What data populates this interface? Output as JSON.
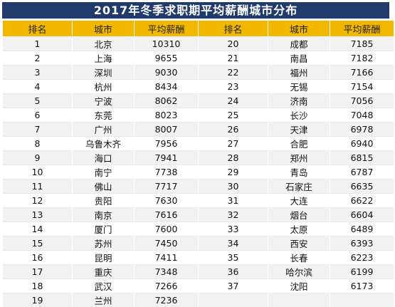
{
  "title": "2017年冬季求职期平均薪酬城市分布",
  "headers": [
    "排名",
    "城市",
    "平均薪酬",
    "排名",
    "城市",
    "平均薪酬"
  ],
  "rows": [
    {
      "left": {
        "rank": "1",
        "city": "北京",
        "salary": "10310"
      },
      "right": {
        "rank": "20",
        "city": "成都",
        "salary": "7185"
      }
    },
    {
      "left": {
        "rank": "2",
        "city": "上海",
        "salary": "9655"
      },
      "right": {
        "rank": "21",
        "city": "南昌",
        "salary": "7182"
      }
    },
    {
      "left": {
        "rank": "3",
        "city": "深圳",
        "salary": "9030"
      },
      "right": {
        "rank": "22",
        "city": "福州",
        "salary": "7166"
      }
    },
    {
      "left": {
        "rank": "4",
        "city": "杭州",
        "salary": "8434"
      },
      "right": {
        "rank": "23",
        "city": "无锡",
        "salary": "7154"
      }
    },
    {
      "left": {
        "rank": "5",
        "city": "宁波",
        "salary": "8062"
      },
      "right": {
        "rank": "24",
        "city": "济南",
        "salary": "7056"
      }
    },
    {
      "left": {
        "rank": "6",
        "city": "东莞",
        "salary": "8023"
      },
      "right": {
        "rank": "25",
        "city": "长沙",
        "salary": "7048"
      }
    },
    {
      "left": {
        "rank": "7",
        "city": "广州",
        "salary": "8007"
      },
      "right": {
        "rank": "26",
        "city": "天津",
        "salary": "6978"
      }
    },
    {
      "left": {
        "rank": "8",
        "city": "乌鲁木齐",
        "salary": "7956"
      },
      "right": {
        "rank": "27",
        "city": "合肥",
        "salary": "6940"
      }
    },
    {
      "left": {
        "rank": "9",
        "city": "海口",
        "salary": "7941"
      },
      "right": {
        "rank": "28",
        "city": "郑州",
        "salary": "6815"
      }
    },
    {
      "left": {
        "rank": "10",
        "city": "南宁",
        "salary": "7738"
      },
      "right": {
        "rank": "29",
        "city": "青岛",
        "salary": "6787"
      }
    },
    {
      "left": {
        "rank": "11",
        "city": "佛山",
        "salary": "7717"
      },
      "right": {
        "rank": "30",
        "city": "石家庄",
        "salary": "6635"
      }
    },
    {
      "left": {
        "rank": "12",
        "city": "贵阳",
        "salary": "7630"
      },
      "right": {
        "rank": "31",
        "city": "大连",
        "salary": "6622"
      }
    },
    {
      "left": {
        "rank": "13",
        "city": "南京",
        "salary": "7616"
      },
      "right": {
        "rank": "32",
        "city": "烟台",
        "salary": "6604"
      }
    },
    {
      "left": {
        "rank": "14",
        "city": "厦门",
        "salary": "7600"
      },
      "right": {
        "rank": "33",
        "city": "太原",
        "salary": "6489"
      }
    },
    {
      "left": {
        "rank": "15",
        "city": "苏州",
        "salary": "7450"
      },
      "right": {
        "rank": "34",
        "city": "西安",
        "salary": "6393"
      }
    },
    {
      "left": {
        "rank": "16",
        "city": "昆明",
        "salary": "7411"
      },
      "right": {
        "rank": "35",
        "city": "长春",
        "salary": "6223"
      }
    },
    {
      "left": {
        "rank": "17",
        "city": "重庆",
        "salary": "7348"
      },
      "right": {
        "rank": "36",
        "city": "哈尔滨",
        "salary": "6199"
      }
    },
    {
      "left": {
        "rank": "18",
        "city": "武汉",
        "salary": "7266"
      },
      "right": {
        "rank": "37",
        "city": "沈阳",
        "salary": "6173"
      }
    },
    {
      "left": {
        "rank": "19",
        "city": "兰州",
        "salary": "7236"
      },
      "right": {
        "rank": "",
        "city": "",
        "salary": ""
      }
    }
  ]
}
